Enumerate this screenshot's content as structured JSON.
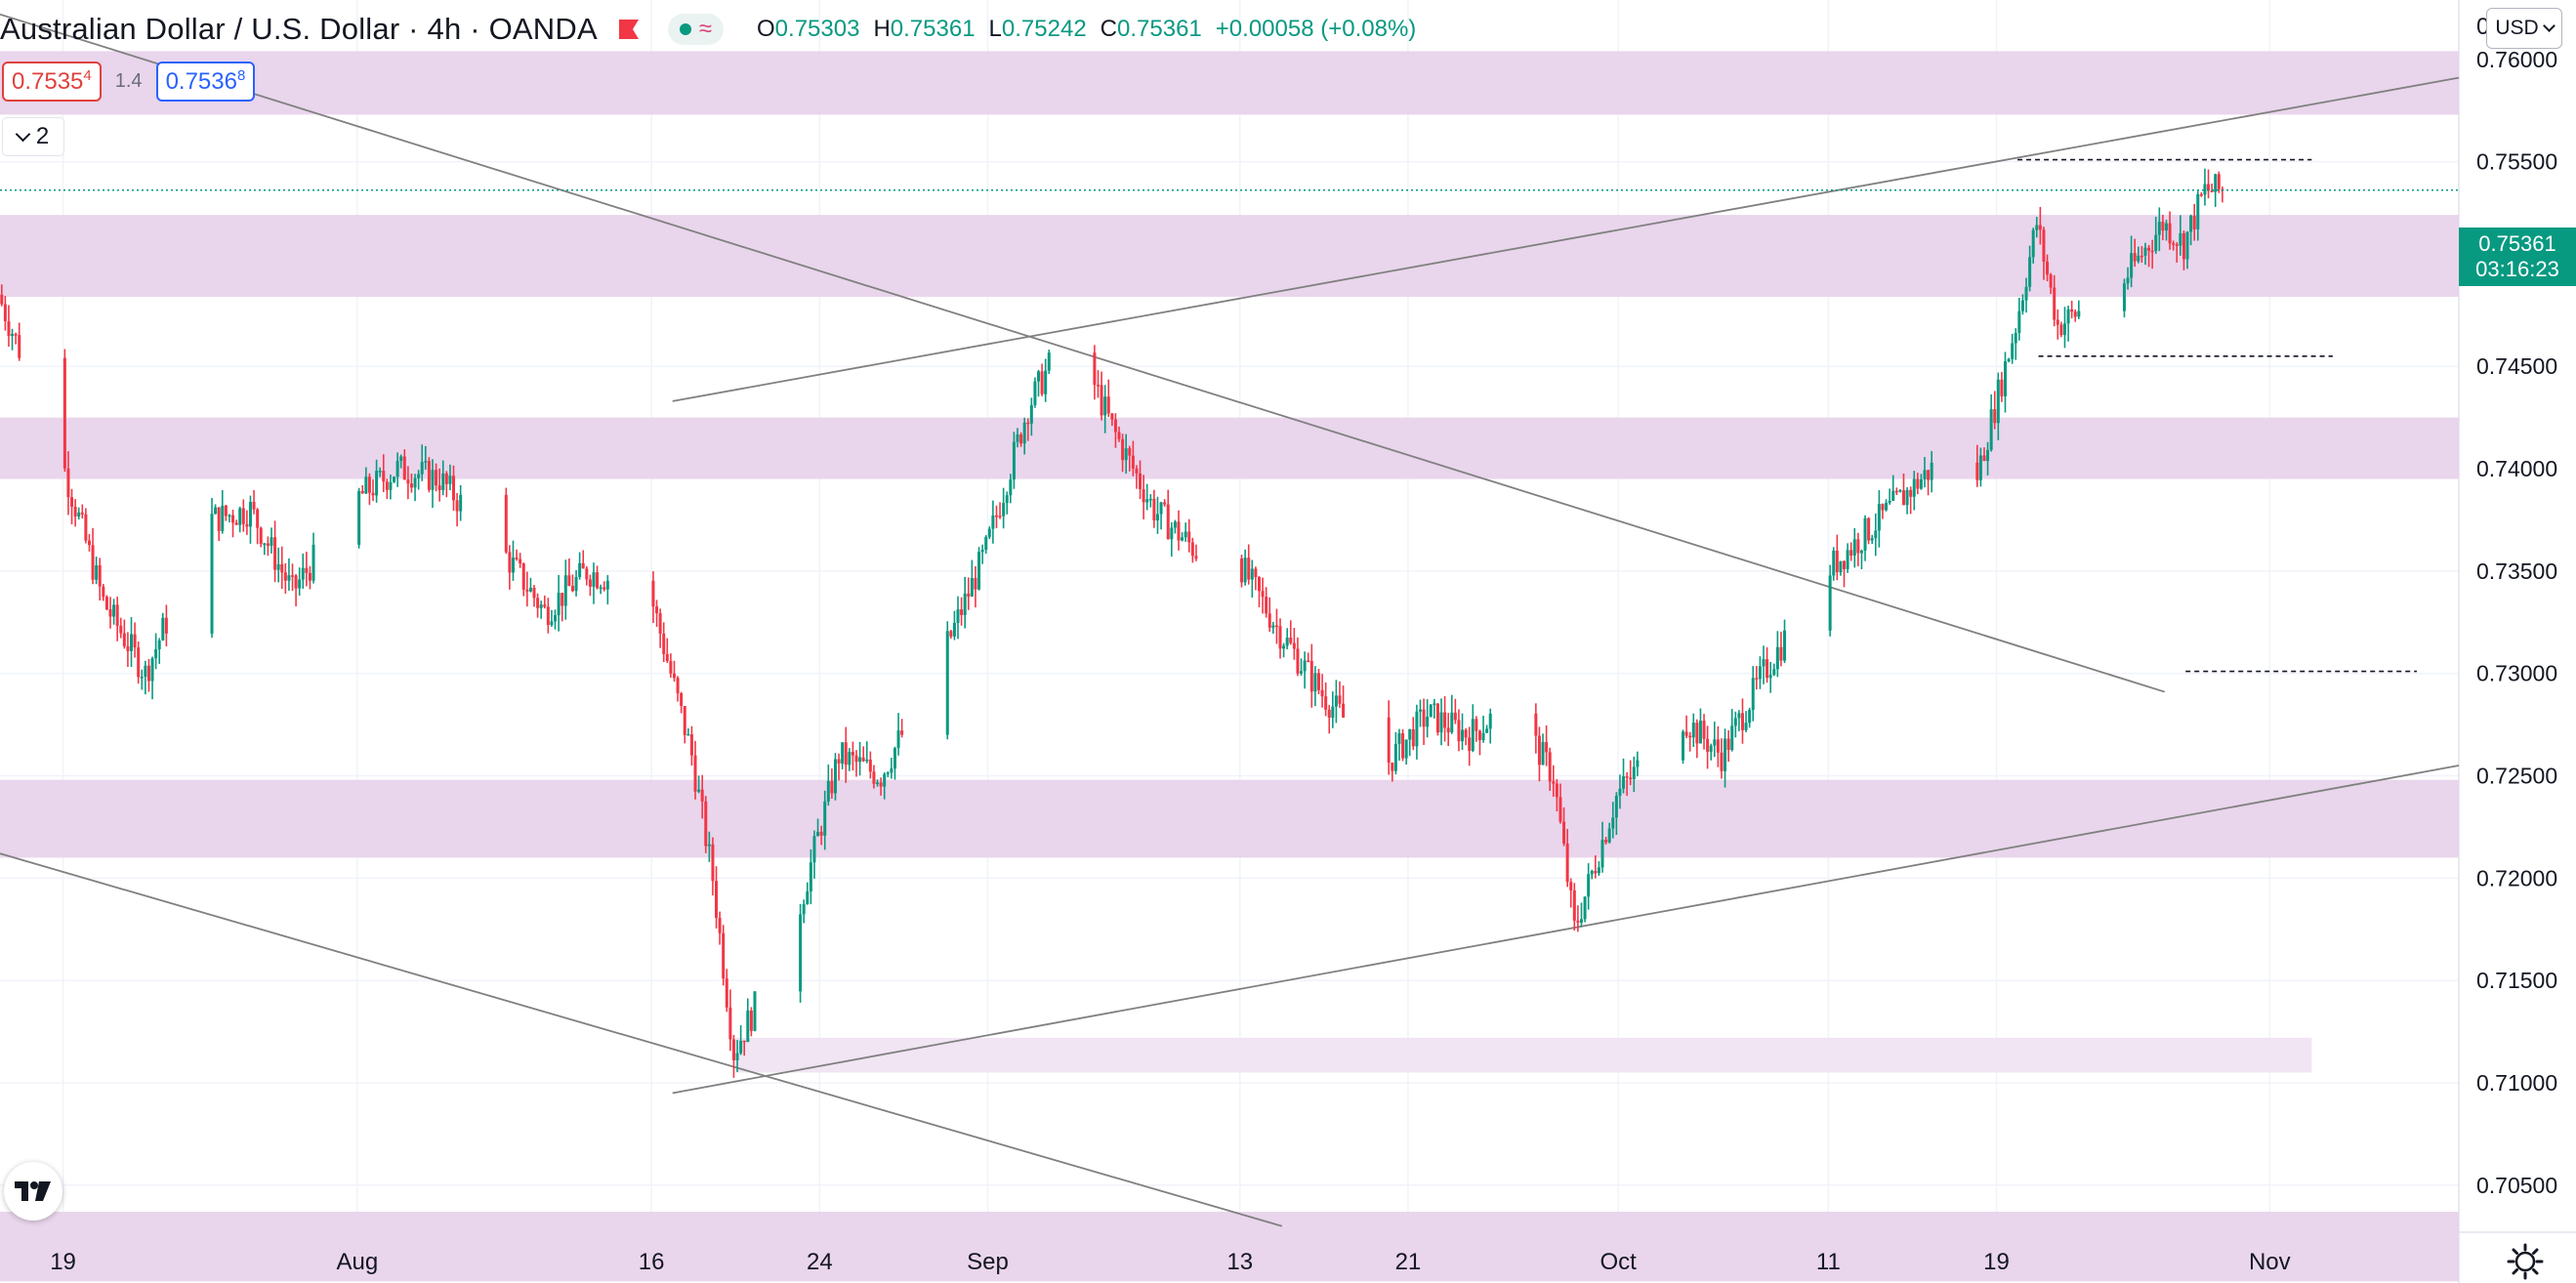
{
  "header": {
    "symbol": "Australian Dollar / U.S. Dollar",
    "interval": "4h",
    "broker": "OANDA",
    "open_label": "O",
    "open": "0.75303",
    "high_label": "H",
    "high": "0.75361",
    "low_label": "L",
    "low": "0.75242",
    "close_label": "C",
    "close": "0.75361",
    "change": "+0.00058 (+0.08%)"
  },
  "quote": {
    "bid_main": "0.7535",
    "bid_sup": "4",
    "spread": "1.4",
    "ask_main": "0.7536",
    "ask_sup": "8"
  },
  "collapse_count": "2",
  "currency_button": "USD",
  "last_price": {
    "value": "0.75361",
    "countdown": "03:16:23"
  },
  "cut_char": "0",
  "colors": {
    "up": "#089981",
    "down": "#f23645",
    "zone": "#e9d5ec",
    "zone_light": "#f1e4f3",
    "trendline": "#808080",
    "last_price_line": "#089981"
  },
  "icons": {
    "flag": "flag-icon",
    "indicator": "indicator-icon",
    "logo": "tradingview-logo-icon",
    "settings": "gear-icon"
  },
  "chart_data": {
    "type": "candlestick",
    "title": "Australian Dollar / U.S. Dollar",
    "interval": "4h",
    "x_ticks": [
      {
        "label": "19",
        "date": "2021-07-19"
      },
      {
        "label": "Aug",
        "date": "2021-08-02"
      },
      {
        "label": "16",
        "date": "2021-08-16"
      },
      {
        "label": "24",
        "date": "2021-08-24"
      },
      {
        "label": "Sep",
        "date": "2021-09-01"
      },
      {
        "label": "13",
        "date": "2021-09-13"
      },
      {
        "label": "21",
        "date": "2021-09-21"
      },
      {
        "label": "Oct",
        "date": "2021-10-01"
      },
      {
        "label": "11",
        "date": "2021-10-11"
      },
      {
        "label": "19",
        "date": "2021-10-19"
      },
      {
        "label": "Nov",
        "date": "2021-11-01"
      }
    ],
    "y_ticks": [
      "0.70500",
      "0.71000",
      "0.71500",
      "0.72000",
      "0.72500",
      "0.73000",
      "0.73500",
      "0.74000",
      "0.74500",
      "0.75000",
      "0.75500",
      "0.76000"
    ],
    "ylim": [
      0.7027,
      0.7629
    ],
    "x_range": [
      "2021-07-16",
      "2021-11-10"
    ],
    "grid": true,
    "path": [
      [
        "2021-07-16",
        0.7485
      ],
      [
        "2021-07-19",
        0.7405
      ],
      [
        "2021-07-21",
        0.7335
      ],
      [
        "2021-07-23",
        0.73
      ],
      [
        "2021-07-26",
        0.7375
      ],
      [
        "2021-07-28",
        0.738
      ],
      [
        "2021-07-30",
        0.734
      ],
      [
        "2021-08-02",
        0.7385
      ],
      [
        "2021-08-04",
        0.74
      ],
      [
        "2021-08-06",
        0.7395
      ],
      [
        "2021-08-09",
        0.736
      ],
      [
        "2021-08-11",
        0.733
      ],
      [
        "2021-08-13",
        0.735
      ],
      [
        "2021-08-16",
        0.734
      ],
      [
        "2021-08-18",
        0.726
      ],
      [
        "2021-08-19",
        0.72
      ],
      [
        "2021-08-20",
        0.7115
      ],
      [
        "2021-08-23",
        0.718
      ],
      [
        "2021-08-25",
        0.726
      ],
      [
        "2021-08-27",
        0.725
      ],
      [
        "2021-08-30",
        0.731
      ],
      [
        "2021-09-01",
        0.736
      ],
      [
        "2021-09-03",
        0.743
      ],
      [
        "2021-09-05",
        0.747
      ],
      [
        "2021-09-07",
        0.742
      ],
      [
        "2021-09-09",
        0.738
      ],
      [
        "2021-09-11",
        0.736
      ],
      [
        "2021-09-13",
        0.7355
      ],
      [
        "2021-09-15",
        0.732
      ],
      [
        "2021-09-17",
        0.729
      ],
      [
        "2021-09-20",
        0.7255
      ],
      [
        "2021-09-22",
        0.728
      ],
      [
        "2021-09-24",
        0.727
      ],
      [
        "2021-09-26",
        0.7285
      ],
      [
        "2021-09-28",
        0.725
      ],
      [
        "2021-09-29",
        0.7175
      ],
      [
        "2021-10-01",
        0.724
      ],
      [
        "2021-10-04",
        0.728
      ],
      [
        "2021-10-06",
        0.726
      ],
      [
        "2021-10-08",
        0.73
      ],
      [
        "2021-10-11",
        0.735
      ],
      [
        "2021-10-13",
        0.737
      ],
      [
        "2021-10-15",
        0.739
      ],
      [
        "2021-10-17",
        0.741
      ],
      [
        "2021-10-18",
        0.739
      ],
      [
        "2021-10-20",
        0.747
      ],
      [
        "2021-10-21",
        0.752
      ],
      [
        "2021-10-22",
        0.747
      ],
      [
        "2021-10-25",
        0.749
      ],
      [
        "2021-10-27",
        0.752
      ],
      [
        "2021-10-28",
        0.751
      ],
      [
        "2021-10-29",
        0.7536
      ]
    ],
    "zones": [
      {
        "low": 0.7573,
        "high": 0.7604
      },
      {
        "low": 0.7484,
        "high": 0.7524
      },
      {
        "low": 0.7395,
        "high": 0.7425
      },
      {
        "low": 0.721,
        "high": 0.7248
      },
      {
        "low": 0.7105,
        "high": 0.7122,
        "from": "2021-08-20",
        "to": "2021-11-03",
        "light": true
      },
      {
        "low": 0.7003,
        "high": 0.7037
      }
    ],
    "trendlines": [
      {
        "from": [
          "2021-07-16",
          0.7622
        ],
        "to": [
          "2021-10-27",
          0.7291
        ]
      },
      {
        "from": [
          "2021-08-17",
          0.7433
        ],
        "to": [
          "2021-11-10",
          0.7591
        ]
      },
      {
        "from": [
          "2021-07-16",
          0.7212
        ],
        "to": [
          "2021-09-15",
          0.703
        ]
      },
      {
        "from": [
          "2021-08-17",
          0.7095
        ],
        "to": [
          "2021-11-10",
          0.7255
        ]
      }
    ],
    "dashed_levels": [
      {
        "value": 0.7551,
        "from": "2021-10-20",
        "to": "2021-11-03"
      },
      {
        "value": 0.7455,
        "from": "2021-10-21",
        "to": "2021-11-04"
      },
      {
        "value": 0.7301,
        "from": "2021-10-28",
        "to": "2021-11-08"
      }
    ],
    "last_price": 0.75361
  }
}
